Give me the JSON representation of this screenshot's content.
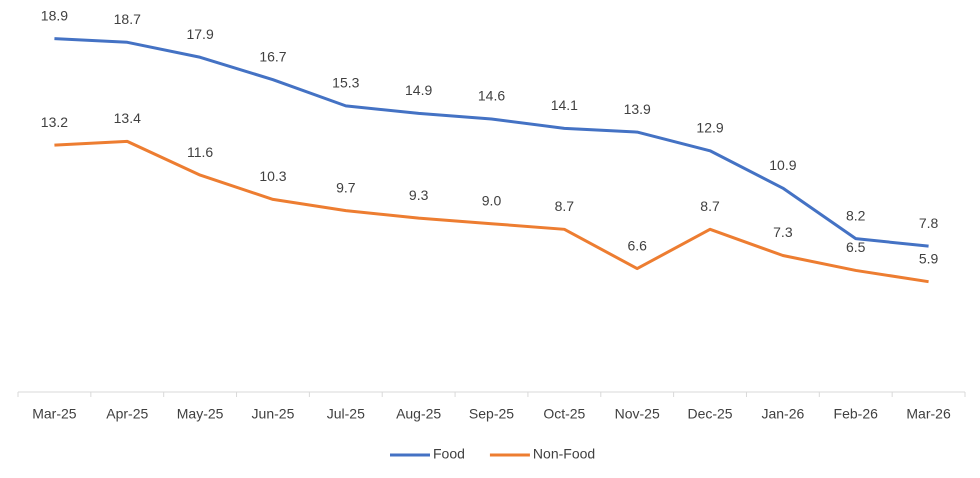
{
  "chart_data": {
    "type": "line",
    "categories": [
      "Mar-25",
      "Apr-25",
      "May-25",
      "Jun-25",
      "Jul-25",
      "Aug-25",
      "Sep-25",
      "Oct-25",
      "Nov-25",
      "Dec-25",
      "Jan-26",
      "Feb-26",
      "Mar-26"
    ],
    "series": [
      {
        "name": "Food",
        "color": "#4472c4",
        "values": [
          18.9,
          18.7,
          17.9,
          16.7,
          15.3,
          14.9,
          14.6,
          14.1,
          13.9,
          12.9,
          10.9,
          8.2,
          7.8
        ],
        "value_labels": [
          "18.9",
          "18.7",
          "17.9",
          "16.7",
          "15.3",
          "14.9",
          "14.6",
          "14.1",
          "13.9",
          "12.9",
          "10.9",
          "8.2",
          "7.8"
        ]
      },
      {
        "name": "Non-Food",
        "color": "#ed7d31",
        "values": [
          13.2,
          13.4,
          11.6,
          10.3,
          9.7,
          9.3,
          9.0,
          8.7,
          6.6,
          8.7,
          7.3,
          6.5,
          5.9
        ],
        "value_labels": [
          "13.2",
          "13.4",
          "11.6",
          "10.3",
          "9.7",
          "9.3",
          "9.0",
          "8.7",
          "6.6",
          "8.7",
          "7.3",
          "6.5",
          "5.9"
        ]
      }
    ],
    "ylim": [
      0,
      20
    ],
    "grid": false,
    "legend": "bottom"
  }
}
